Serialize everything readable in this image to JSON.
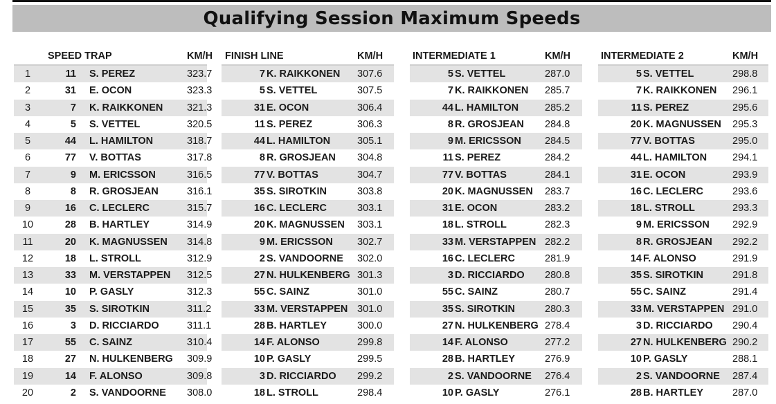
{
  "title": "Qualifying Session Maximum Speeds",
  "positions": [
    "1",
    "2",
    "3",
    "4",
    "5",
    "6",
    "7",
    "8",
    "9",
    "10",
    "11",
    "12",
    "13",
    "14",
    "15",
    "16",
    "17",
    "18",
    "19",
    "20"
  ],
  "panels": [
    {
      "header": "SPEED TRAP",
      "unit": "KM/H",
      "rows": [
        {
          "num": "11",
          "driver": "S. PEREZ",
          "speed": "323.7"
        },
        {
          "num": "31",
          "driver": "E. OCON",
          "speed": "323.3"
        },
        {
          "num": "7",
          "driver": "K. RAIKKONEN",
          "speed": "321.3"
        },
        {
          "num": "5",
          "driver": "S. VETTEL",
          "speed": "320.5"
        },
        {
          "num": "44",
          "driver": "L. HAMILTON",
          "speed": "318.7"
        },
        {
          "num": "77",
          "driver": "V. BOTTAS",
          "speed": "317.8"
        },
        {
          "num": "9",
          "driver": "M. ERICSSON",
          "speed": "316.5"
        },
        {
          "num": "8",
          "driver": "R. GROSJEAN",
          "speed": "316.1"
        },
        {
          "num": "16",
          "driver": "C. LECLERC",
          "speed": "315.7"
        },
        {
          "num": "28",
          "driver": "B. HARTLEY",
          "speed": "314.9"
        },
        {
          "num": "20",
          "driver": "K. MAGNUSSEN",
          "speed": "314.8"
        },
        {
          "num": "18",
          "driver": "L. STROLL",
          "speed": "312.9"
        },
        {
          "num": "33",
          "driver": "M. VERSTAPPEN",
          "speed": "312.5"
        },
        {
          "num": "10",
          "driver": "P. GASLY",
          "speed": "312.3"
        },
        {
          "num": "35",
          "driver": "S. SIROTKIN",
          "speed": "311.2"
        },
        {
          "num": "3",
          "driver": "D. RICCIARDO",
          "speed": "311.1"
        },
        {
          "num": "55",
          "driver": "C. SAINZ",
          "speed": "310.4"
        },
        {
          "num": "27",
          "driver": "N. HULKENBERG",
          "speed": "309.9"
        },
        {
          "num": "14",
          "driver": "F. ALONSO",
          "speed": "309.8"
        },
        {
          "num": "2",
          "driver": "S. VANDOORNE",
          "speed": "308.0"
        }
      ]
    },
    {
      "header": "FINISH LINE",
      "unit": "KM/H",
      "rows": [
        {
          "num": "7",
          "driver": "K. RAIKKONEN",
          "speed": "307.6"
        },
        {
          "num": "5",
          "driver": "S. VETTEL",
          "speed": "307.5"
        },
        {
          "num": "31",
          "driver": "E. OCON",
          "speed": "306.4"
        },
        {
          "num": "11",
          "driver": "S. PEREZ",
          "speed": "306.3"
        },
        {
          "num": "44",
          "driver": "L. HAMILTON",
          "speed": "305.1"
        },
        {
          "num": "8",
          "driver": "R. GROSJEAN",
          "speed": "304.8"
        },
        {
          "num": "77",
          "driver": "V. BOTTAS",
          "speed": "304.7"
        },
        {
          "num": "35",
          "driver": "S. SIROTKIN",
          "speed": "303.8"
        },
        {
          "num": "16",
          "driver": "C. LECLERC",
          "speed": "303.1"
        },
        {
          "num": "20",
          "driver": "K. MAGNUSSEN",
          "speed": "303.1"
        },
        {
          "num": "9",
          "driver": "M. ERICSSON",
          "speed": "302.7"
        },
        {
          "num": "2",
          "driver": "S. VANDOORNE",
          "speed": "302.0"
        },
        {
          "num": "27",
          "driver": "N. HULKENBERG",
          "speed": "301.3"
        },
        {
          "num": "55",
          "driver": "C. SAINZ",
          "speed": "301.0"
        },
        {
          "num": "33",
          "driver": "M. VERSTAPPEN",
          "speed": "301.0"
        },
        {
          "num": "28",
          "driver": "B. HARTLEY",
          "speed": "300.0"
        },
        {
          "num": "14",
          "driver": "F. ALONSO",
          "speed": "299.8"
        },
        {
          "num": "10",
          "driver": "P. GASLY",
          "speed": "299.5"
        },
        {
          "num": "3",
          "driver": "D. RICCIARDO",
          "speed": "299.2"
        },
        {
          "num": "18",
          "driver": "L. STROLL",
          "speed": "298.4"
        }
      ]
    },
    {
      "header": "INTERMEDIATE 1",
      "unit": "KM/H",
      "rows": [
        {
          "num": "5",
          "driver": "S. VETTEL",
          "speed": "287.0"
        },
        {
          "num": "7",
          "driver": "K. RAIKKONEN",
          "speed": "285.7"
        },
        {
          "num": "44",
          "driver": "L. HAMILTON",
          "speed": "285.2"
        },
        {
          "num": "8",
          "driver": "R. GROSJEAN",
          "speed": "284.8"
        },
        {
          "num": "9",
          "driver": "M. ERICSSON",
          "speed": "284.5"
        },
        {
          "num": "11",
          "driver": "S. PEREZ",
          "speed": "284.2"
        },
        {
          "num": "77",
          "driver": "V. BOTTAS",
          "speed": "284.1"
        },
        {
          "num": "20",
          "driver": "K. MAGNUSSEN",
          "speed": "283.7"
        },
        {
          "num": "31",
          "driver": "E. OCON",
          "speed": "283.2"
        },
        {
          "num": "18",
          "driver": "L. STROLL",
          "speed": "282.3"
        },
        {
          "num": "33",
          "driver": "M. VERSTAPPEN",
          "speed": "282.2"
        },
        {
          "num": "16",
          "driver": "C. LECLERC",
          "speed": "281.9"
        },
        {
          "num": "3",
          "driver": "D. RICCIARDO",
          "speed": "280.8"
        },
        {
          "num": "55",
          "driver": "C. SAINZ",
          "speed": "280.7"
        },
        {
          "num": "35",
          "driver": "S. SIROTKIN",
          "speed": "280.3"
        },
        {
          "num": "27",
          "driver": "N. HULKENBERG",
          "speed": "278.4"
        },
        {
          "num": "14",
          "driver": "F. ALONSO",
          "speed": "277.2"
        },
        {
          "num": "28",
          "driver": "B. HARTLEY",
          "speed": "276.9"
        },
        {
          "num": "2",
          "driver": "S. VANDOORNE",
          "speed": "276.4"
        },
        {
          "num": "10",
          "driver": "P. GASLY",
          "speed": "276.1"
        }
      ]
    },
    {
      "header": "INTERMEDIATE 2",
      "unit": "KM/H",
      "rows": [
        {
          "num": "5",
          "driver": "S. VETTEL",
          "speed": "298.8"
        },
        {
          "num": "7",
          "driver": "K. RAIKKONEN",
          "speed": "296.1"
        },
        {
          "num": "11",
          "driver": "S. PEREZ",
          "speed": "295.6"
        },
        {
          "num": "20",
          "driver": "K. MAGNUSSEN",
          "speed": "295.3"
        },
        {
          "num": "77",
          "driver": "V. BOTTAS",
          "speed": "295.0"
        },
        {
          "num": "44",
          "driver": "L. HAMILTON",
          "speed": "294.1"
        },
        {
          "num": "31",
          "driver": "E. OCON",
          "speed": "293.9"
        },
        {
          "num": "16",
          "driver": "C. LECLERC",
          "speed": "293.6"
        },
        {
          "num": "18",
          "driver": "L. STROLL",
          "speed": "293.3"
        },
        {
          "num": "9",
          "driver": "M. ERICSSON",
          "speed": "292.9"
        },
        {
          "num": "8",
          "driver": "R. GROSJEAN",
          "speed": "292.2"
        },
        {
          "num": "14",
          "driver": "F. ALONSO",
          "speed": "291.9"
        },
        {
          "num": "35",
          "driver": "S. SIROTKIN",
          "speed": "291.8"
        },
        {
          "num": "55",
          "driver": "C. SAINZ",
          "speed": "291.4"
        },
        {
          "num": "33",
          "driver": "M. VERSTAPPEN",
          "speed": "291.0"
        },
        {
          "num": "3",
          "driver": "D. RICCIARDO",
          "speed": "290.4"
        },
        {
          "num": "27",
          "driver": "N. HULKENBERG",
          "speed": "290.2"
        },
        {
          "num": "10",
          "driver": "P. GASLY",
          "speed": "288.1"
        },
        {
          "num": "2",
          "driver": "S. VANDOORNE",
          "speed": "287.4"
        },
        {
          "num": "28",
          "driver": "B. HARTLEY",
          "speed": "287.0"
        }
      ]
    }
  ]
}
